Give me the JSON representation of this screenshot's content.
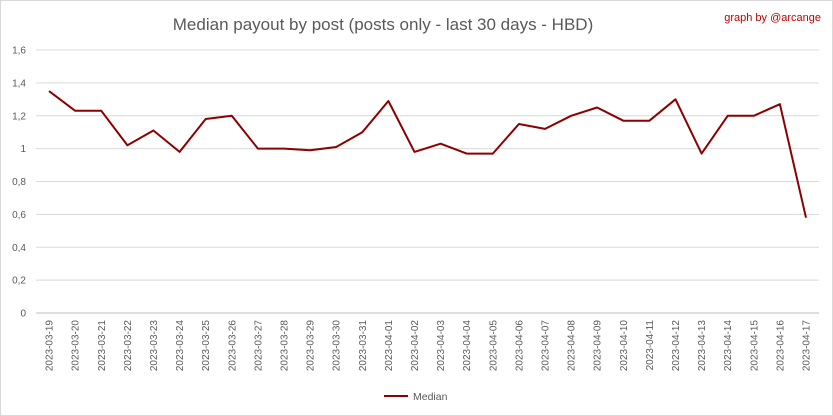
{
  "chart_data": {
    "type": "line",
    "title": "Median payout by post (posts only - last 30 days - HBD)",
    "credit": "graph by @arcange",
    "xlabel": "",
    "ylabel": "",
    "ylim": [
      0,
      1.6
    ],
    "yticks": [
      0,
      0.2,
      0.4,
      0.6,
      0.8,
      1.0,
      1.2,
      1.4,
      1.6
    ],
    "ytick_labels": [
      "0",
      "0,2",
      "0,4",
      "0,6",
      "0,8",
      "1",
      "1,2",
      "1,4",
      "1,6"
    ],
    "grid": true,
    "legend_position": "bottom",
    "x": [
      "2023-03-19",
      "2023-03-20",
      "2023-03-21",
      "2023-03-22",
      "2023-03-23",
      "2023-03-24",
      "2023-03-25",
      "2023-03-26",
      "2023-03-27",
      "2023-03-28",
      "2023-03-29",
      "2023-03-30",
      "2023-03-31",
      "2023-04-01",
      "2023-04-02",
      "2023-04-03",
      "2023-04-04",
      "2023-04-05",
      "2023-04-06",
      "2023-04-07",
      "2023-04-08",
      "2023-04-09",
      "2023-04-10",
      "2023-04-11",
      "2023-04-12",
      "2023-04-13",
      "2023-04-14",
      "2023-04-15",
      "2023-04-16",
      "2023-04-17"
    ],
    "series": [
      {
        "name": "Median",
        "color": "#8b0000",
        "values": [
          1.35,
          1.23,
          1.23,
          1.02,
          1.11,
          0.98,
          1.18,
          1.2,
          1.0,
          1.0,
          0.99,
          1.01,
          1.1,
          1.29,
          0.98,
          1.03,
          0.97,
          0.97,
          1.15,
          1.12,
          1.2,
          1.25,
          1.17,
          1.17,
          1.3,
          0.97,
          1.2,
          1.2,
          1.27,
          0.58
        ]
      }
    ]
  }
}
